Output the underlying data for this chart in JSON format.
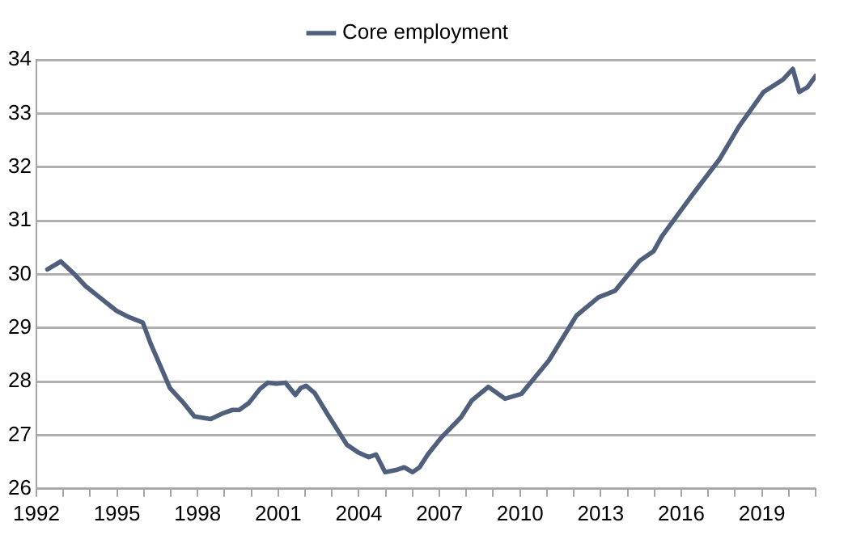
{
  "chart_data": {
    "type": "line",
    "legend": "top",
    "grid": "y",
    "marker": "none",
    "line_style": "solid",
    "xlim": [
      1992,
      2021
    ],
    "xticks": [
      1992,
      {
        "value": 1993,
        "label": null
      },
      {
        "value": 1994,
        "label": null
      },
      1995,
      {
        "value": 1996,
        "label": null
      },
      {
        "value": 1997,
        "label": null
      },
      1998,
      {
        "value": 1999,
        "label": null
      },
      {
        "value": 2000,
        "label": null
      },
      2001,
      {
        "value": 2002,
        "label": null
      },
      {
        "value": 2003,
        "label": null
      },
      2004,
      {
        "value": 2005,
        "label": null
      },
      {
        "value": 2006,
        "label": null
      },
      2007,
      {
        "value": 2008,
        "label": null
      },
      {
        "value": 2009,
        "label": null
      },
      2010,
      {
        "value": 2011,
        "label": null
      },
      {
        "value": 2012,
        "label": null
      },
      2013,
      {
        "value": 2014,
        "label": null
      },
      {
        "value": 2015,
        "label": null
      },
      2016,
      {
        "value": 2017,
        "label": null
      },
      {
        "value": 2018,
        "label": null
      },
      2019,
      {
        "value": 2020,
        "label": null
      },
      {
        "value": 2021,
        "label": null
      }
    ],
    "ylim": [
      26,
      34
    ],
    "yticks": [
      26,
      27,
      28,
      29,
      30,
      31,
      32,
      33,
      34
    ],
    "x": [
      1992.41,
      1992.91,
      1993.42,
      1993.83,
      1994.23,
      1994.98,
      1995.45,
      1995.96,
      1996.26,
      1996.97,
      1997.48,
      1997.88,
      1998.49,
      1998.9,
      1999.3,
      1999.55,
      1999.91,
      2000.32,
      2000.62,
      2000.93,
      2001.27,
      2001.64,
      2001.84,
      2002.04,
      2002.35,
      2002.85,
      2003.56,
      2003.97,
      2004.37,
      2004.64,
      2004.98,
      2005.39,
      2005.69,
      2006.0,
      2006.26,
      2006.57,
      2007.08,
      2007.8,
      2008.21,
      2008.82,
      2009.44,
      2010.05,
      2010.46,
      2011.07,
      2012.1,
      2012.92,
      2013.53,
      2014.45,
      2014.97,
      2015.28,
      2016.5,
      2017.43,
      2018.14,
      2019.06,
      2019.78,
      2020.15,
      2020.39,
      2020.7,
      2021.0
    ],
    "series": [
      {
        "name": "Core employment",
        "color": "#4f5f7c",
        "values": [
          30.09,
          30.24,
          30.0,
          29.78,
          29.62,
          29.32,
          29.2,
          29.1,
          28.7,
          27.88,
          27.6,
          27.35,
          27.3,
          27.4,
          27.47,
          27.47,
          27.6,
          27.86,
          27.98,
          27.96,
          27.98,
          27.75,
          27.88,
          27.92,
          27.79,
          27.38,
          26.82,
          26.68,
          26.59,
          26.64,
          26.31,
          26.35,
          26.4,
          26.31,
          26.4,
          26.64,
          26.96,
          27.33,
          27.65,
          27.9,
          27.68,
          27.77,
          28.02,
          28.39,
          29.23,
          29.57,
          29.69,
          30.25,
          30.43,
          30.71,
          31.54,
          32.15,
          32.75,
          33.4,
          33.63,
          33.83,
          33.4,
          33.49,
          33.7
        ]
      }
    ]
  }
}
